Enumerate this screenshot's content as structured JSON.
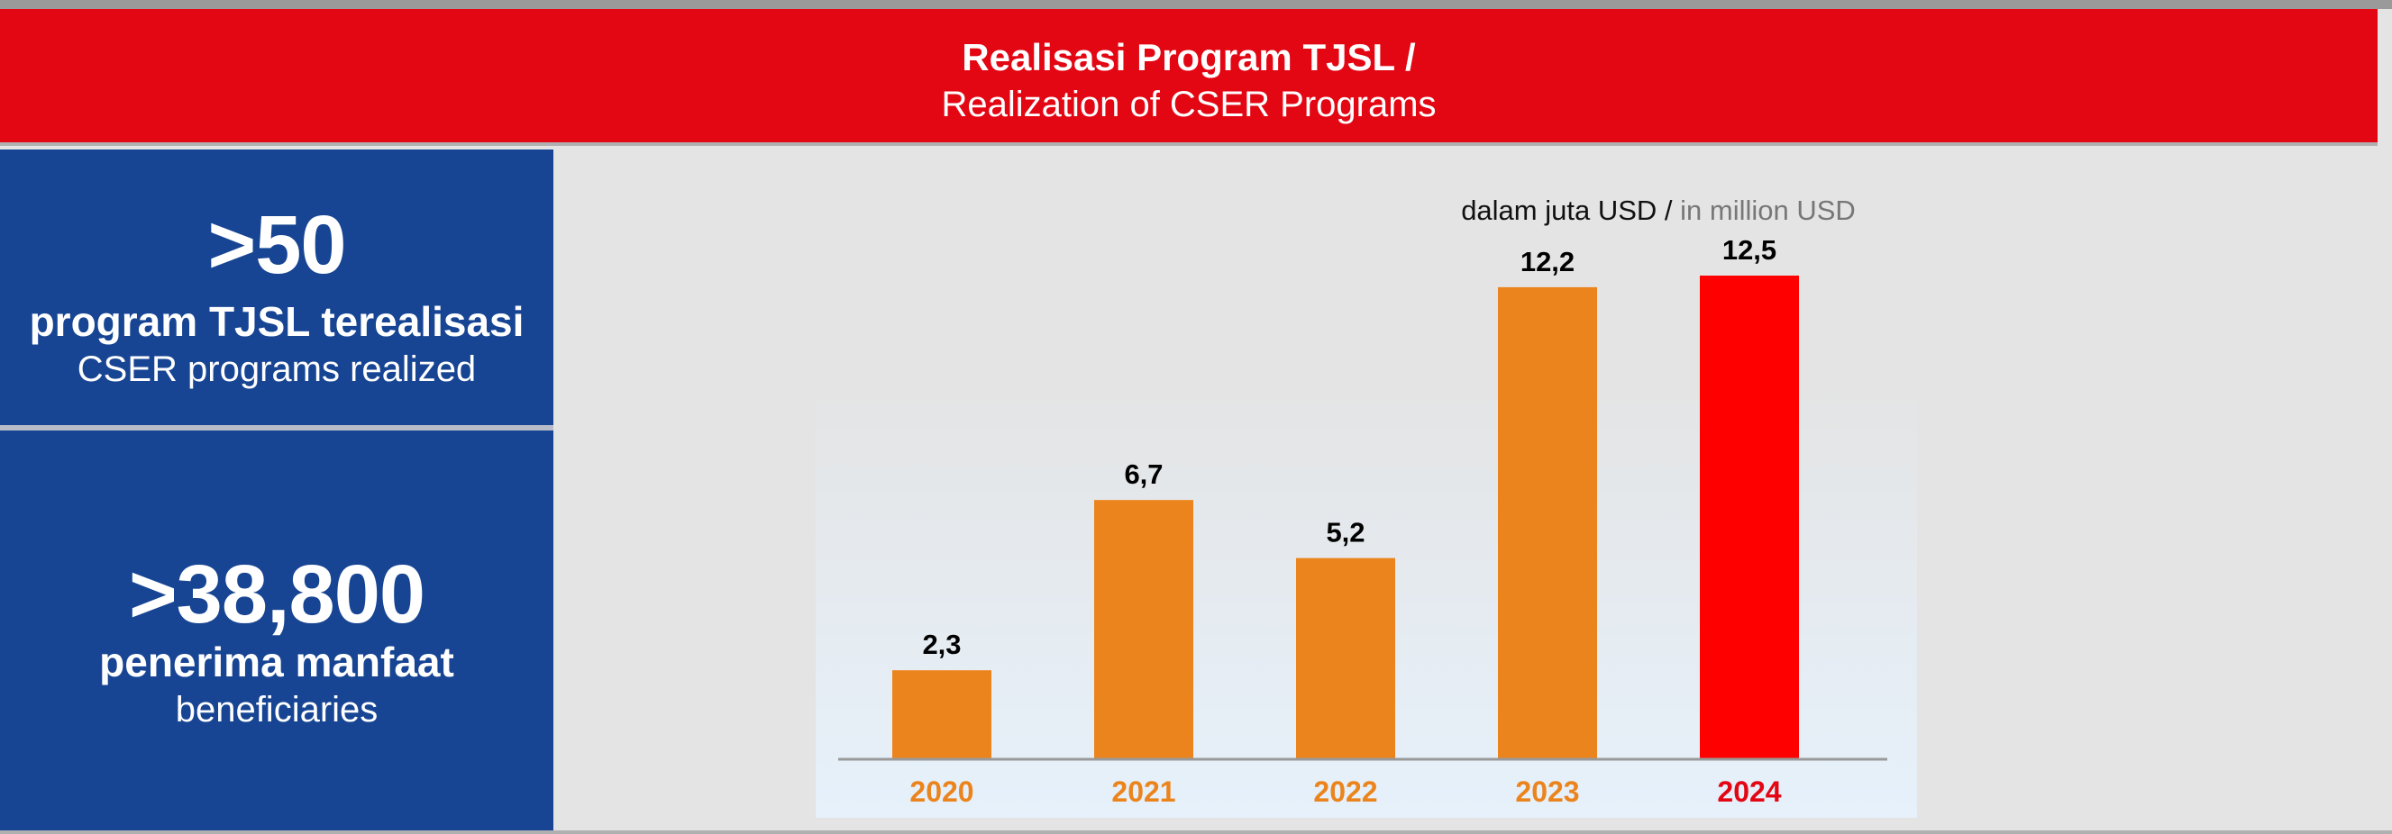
{
  "header": {
    "title_id": "Realisasi Program TJSL /",
    "title_en": "Realization of CSER Programs"
  },
  "stats": [
    {
      "value": ">50",
      "label_id": "program TJSL terealisasi",
      "label_en": "CSER programs realized"
    },
    {
      "value": ">38,800",
      "label_id": "penerima manfaat",
      "label_en": "beneficiaries"
    }
  ],
  "colors": {
    "header": "#e30613",
    "panel": "#174593",
    "bar": "#eb841d",
    "highlight": "#ff0000"
  },
  "chart_data": {
    "type": "bar",
    "unit_id": "dalam juta USD /",
    "unit_en": "in million USD",
    "categories": [
      "2020",
      "2021",
      "2022",
      "2023",
      "2024"
    ],
    "values": [
      2.3,
      6.7,
      5.2,
      12.2,
      12.5
    ],
    "value_labels": [
      "2,3",
      "6,7",
      "5,2",
      "12,2",
      "12,5"
    ],
    "highlight": "2024",
    "ylim": [
      0,
      12.5
    ],
    "grid": false,
    "legend": "none"
  }
}
